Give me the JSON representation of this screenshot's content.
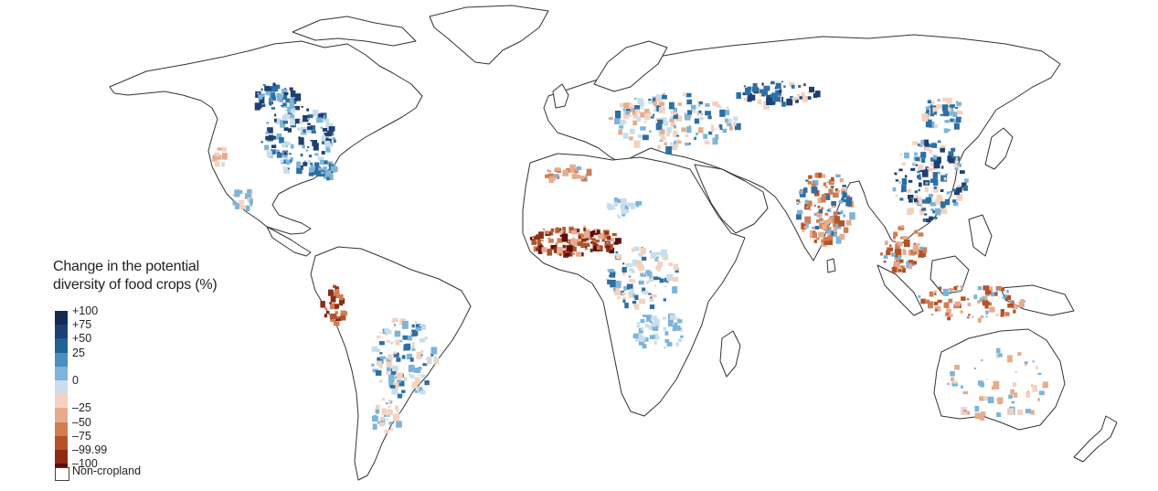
{
  "legend": {
    "title_line1": "Change in the potential",
    "title_line2": "diversity of food crops (%)",
    "classes": [
      {
        "label": "+100",
        "color": "#162a52"
      },
      {
        "label": "+75",
        "color": "#1f3f73"
      },
      {
        "label": "+50",
        "color": "#1f6293"
      },
      {
        "label": "25",
        "color": "#4b8fbe"
      },
      {
        "label": "",
        "color": "#7db4d8"
      },
      {
        "label": "0",
        "color": "#c8deec"
      },
      {
        "label": "",
        "color": "#f2d3c1"
      },
      {
        "label": "–25",
        "color": "#e6ac8e"
      },
      {
        "label": "–50",
        "color": "#cf7f52"
      },
      {
        "label": "–75",
        "color": "#b4532a"
      },
      {
        "label": "–99.99",
        "color": "#8a2c17"
      },
      {
        "label": "–100",
        "color": "#5a0f0c"
      }
    ],
    "noncropland_label": "Non-cropland"
  },
  "colors": {
    "blue_dark": "#1f3f73",
    "blue_mid": "#2d6fa3",
    "blue_light": "#7db4d8",
    "blue_pale": "#c8deec",
    "red_pale": "#f2d3c1",
    "red_light": "#e6ac8e",
    "red_mid": "#cf7f52",
    "red_dark": "#b4532a",
    "red_darker": "#8a2c17",
    "red_darkest": "#5a0f0c",
    "outline": "#333333"
  }
}
